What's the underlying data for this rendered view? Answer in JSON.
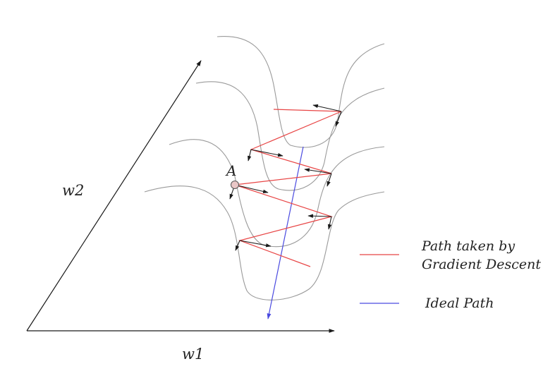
{
  "axes": {
    "x_label": "w1",
    "y_label": "w2"
  },
  "point": {
    "label": "A"
  },
  "legend": {
    "gradient_descent": {
      "line1": "Path taken by",
      "line2": "Gradient Descent",
      "color": "#e84545"
    },
    "ideal": {
      "label": "Ideal Path",
      "color": "#4a4ae0"
    }
  },
  "colors": {
    "contour": "#9a9a9a",
    "axis": "#1a1a1a",
    "gradient_arrow": "#1a1a1a",
    "point_fill": "#e9c6c6"
  }
}
